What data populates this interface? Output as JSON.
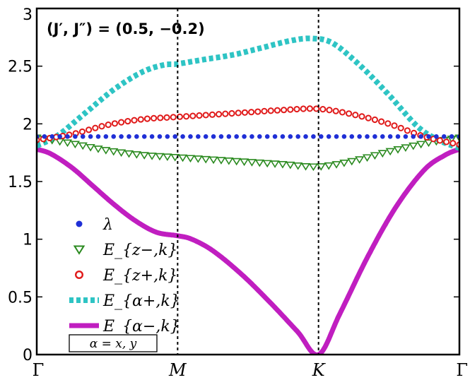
{
  "chart_data": {
    "type": "line",
    "title": "",
    "xlabel": "",
    "ylabel": "",
    "ylim": [
      0,
      3
    ],
    "yticks": [
      "0",
      "0.5",
      "1",
      "1.5",
      "2",
      "2.5",
      "3"
    ],
    "ytick_values": [
      0,
      0.5,
      1,
      1.5,
      2,
      2.5,
      3
    ],
    "xlim": [
      0,
      3
    ],
    "xticks": [
      {
        "label": "Γ",
        "x": 0
      },
      {
        "label": "M",
        "x": 1
      },
      {
        "label": "K",
        "x": 2
      },
      {
        "label": "Γ",
        "x": 3
      }
    ],
    "vlines_x": [
      1,
      2
    ],
    "grid": false,
    "legend_position": "lower-left",
    "annotation": "(J′, J″) = (0.5, −0.2)",
    "note_box": "α = x, y",
    "series": [
      {
        "name": "λ",
        "style": "dots",
        "color": "#1f2fd6",
        "x": [
          0,
          3
        ],
        "y": [
          1.89,
          1.89
        ],
        "points": 56
      },
      {
        "name": "E_{z−,k}",
        "style": "triangles",
        "color": "#2a8a1f",
        "x": [
          0,
          0.25,
          0.5,
          0.75,
          1,
          1.25,
          1.5,
          1.75,
          2,
          2.25,
          2.5,
          2.75,
          3
        ],
        "y": [
          1.88,
          1.83,
          1.77,
          1.73,
          1.71,
          1.69,
          1.67,
          1.65,
          1.63,
          1.68,
          1.76,
          1.83,
          1.88
        ],
        "points": 56
      },
      {
        "name": "E_{z+,k}",
        "style": "circles",
        "color": "#e01a1a",
        "x": [
          0,
          0.25,
          0.5,
          0.75,
          1,
          1.25,
          1.5,
          1.75,
          2,
          2.25,
          2.5,
          2.75,
          3
        ],
        "y": [
          1.86,
          1.91,
          1.99,
          2.04,
          2.06,
          2.08,
          2.1,
          2.12,
          2.13,
          2.08,
          2.0,
          1.89,
          1.82
        ],
        "points": 66
      },
      {
        "name": "E_{α+,k}",
        "style": "thick-dotted",
        "color": "#2ec4c4",
        "x": [
          0,
          0.15,
          0.35,
          0.55,
          0.75,
          0.9,
          1,
          1.2,
          1.4,
          1.6,
          1.8,
          1.95,
          2.1,
          2.3,
          2.5,
          2.7,
          2.85,
          3
        ],
        "y": [
          1.81,
          1.9,
          2.1,
          2.3,
          2.45,
          2.51,
          2.52,
          2.56,
          2.6,
          2.66,
          2.72,
          2.74,
          2.7,
          2.5,
          2.25,
          1.98,
          1.86,
          1.79
        ],
        "points": 0
      },
      {
        "name": "E_{α−,k}",
        "style": "thick-line",
        "color": "#c01ec0",
        "x": [
          0,
          0.1,
          0.25,
          0.4,
          0.55,
          0.7,
          0.85,
          1,
          1.1,
          1.25,
          1.45,
          1.65,
          1.85,
          2,
          2.15,
          2.35,
          2.55,
          2.75,
          2.9,
          3
        ],
        "y": [
          1.78,
          1.74,
          1.62,
          1.46,
          1.3,
          1.16,
          1.06,
          1.03,
          1.0,
          0.9,
          0.7,
          0.46,
          0.2,
          0.0,
          0.35,
          0.85,
          1.28,
          1.6,
          1.73,
          1.78
        ],
        "points": 0
      }
    ]
  }
}
